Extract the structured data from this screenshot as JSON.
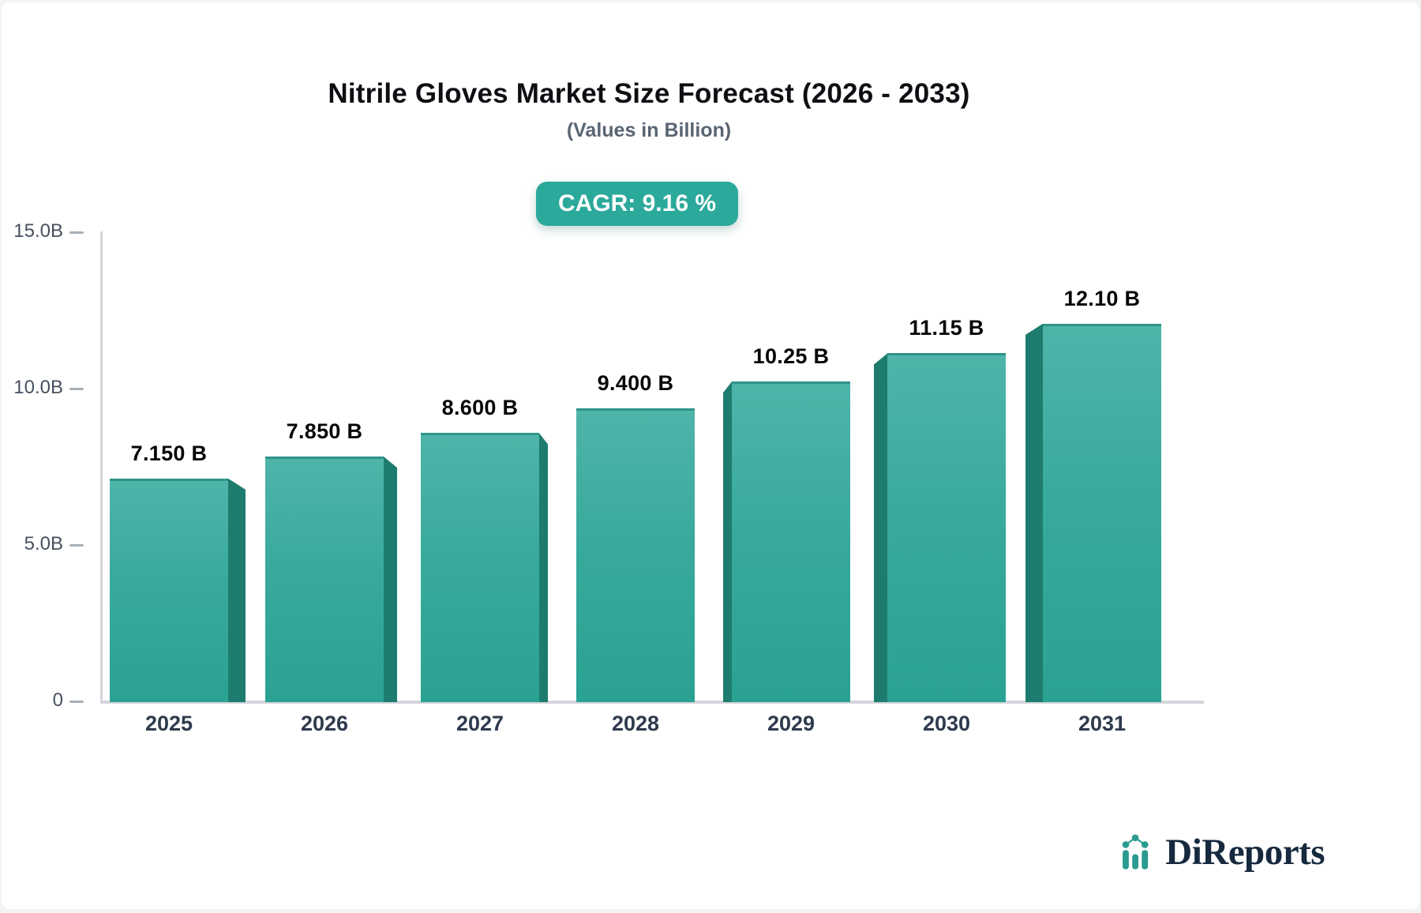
{
  "page": {
    "background": "#f2f3f5",
    "card_background": "#ffffff"
  },
  "header": {
    "title": "Nitrile Gloves Market Size Forecast (2026 - 2033)",
    "subtitle": "(Values in Billion)"
  },
  "badge": {
    "label": "CAGR: 9.16 %",
    "background": "#2BA99B",
    "text_color": "#ffffff"
  },
  "chart_data": {
    "type": "bar",
    "title": "Nitrile Gloves Market Size Forecast (2026 - 2033)",
    "subtitle": "(Values in Billion)",
    "categories": [
      "2025",
      "2026",
      "2027",
      "2028",
      "2029",
      "2030",
      "2031"
    ],
    "values": [
      7.15,
      7.85,
      8.6,
      9.4,
      10.25,
      11.15,
      12.1
    ],
    "value_labels": [
      "7.150 B",
      "7.850 B",
      "8.600 B",
      "9.400 B",
      "10.25 B",
      "11.15 B",
      "12.10 B"
    ],
    "xlabel": "",
    "ylabel": "",
    "ylim": [
      0,
      15
    ],
    "y_ticks": [
      {
        "label": "15.0B",
        "value": 15
      },
      {
        "label": "10.0B",
        "value": 10
      },
      {
        "label": "5.0B",
        "value": 5
      },
      {
        "label": "0",
        "value": 0
      }
    ],
    "grid": false,
    "legend": false,
    "style": "3d-perspective-bars",
    "colors": {
      "bar_face_top": "#4FB4A9",
      "bar_face_bottom": "#2AA292",
      "bar_top_edge": "#2F9488",
      "bar_side": "#1E7C6F",
      "axis": "#d3d6db",
      "tick": "#a9afb9",
      "label": "#46505f"
    }
  },
  "logo": {
    "text": "DiReports",
    "icon": "bar-line-chart-icon",
    "text_color": "#16293E",
    "accent_color": "#2B9B90"
  }
}
